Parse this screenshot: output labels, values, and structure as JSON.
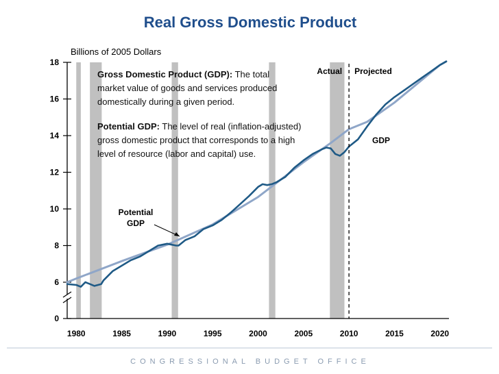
{
  "chart_data": {
    "type": "line",
    "title": "Real Gross Domestic Product",
    "ylabel": "Billions of 2005 Dollars",
    "xlabel": "",
    "xlim": [
      1979,
      2021
    ],
    "ylim": [
      0,
      18
    ],
    "y_ticks": [
      "0",
      "6",
      "8",
      "10",
      "12",
      "14",
      "16",
      "18"
    ],
    "x_ticks": [
      "1980",
      "1985",
      "1990",
      "1995",
      "2000",
      "2005",
      "2010",
      "2015",
      "2020"
    ],
    "recessions": [
      [
        1980.0,
        1980.5
      ],
      [
        1981.5,
        1982.8
      ],
      [
        1990.5,
        1991.2
      ],
      [
        2001.2,
        2001.9
      ],
      [
        2007.9,
        2009.5
      ]
    ],
    "projection_start": 2010,
    "divider_labels": {
      "actual": "Actual",
      "projected": "Projected"
    },
    "series": [
      {
        "name": "GDP",
        "label": "GDP",
        "color": "#1f5a86",
        "x": [
          1979,
          1980,
          1980.5,
          1981,
          1981.5,
          1982,
          1982.75,
          1983,
          1984,
          1985,
          1986,
          1987,
          1988,
          1989,
          1990,
          1990.5,
          1991,
          1991.25,
          1992,
          1993,
          1994,
          1995,
          1996,
          1997,
          1998,
          1999,
          2000,
          2000.5,
          2001,
          2001.5,
          2002,
          2003,
          2004,
          2005,
          2006,
          2007,
          2007.5,
          2008,
          2008.5,
          2009,
          2009.5,
          2010,
          2011,
          2012,
          2013,
          2014,
          2015,
          2016,
          2017,
          2018,
          2019,
          2020,
          2020.7
        ],
        "values": [
          5.9,
          5.85,
          5.75,
          6.0,
          5.9,
          5.8,
          5.9,
          6.1,
          6.6,
          6.9,
          7.2,
          7.4,
          7.7,
          8.0,
          8.1,
          8.05,
          8.0,
          8.0,
          8.3,
          8.5,
          8.9,
          9.1,
          9.4,
          9.8,
          10.25,
          10.7,
          11.2,
          11.35,
          11.3,
          11.35,
          11.45,
          11.75,
          12.25,
          12.65,
          13.0,
          13.25,
          13.35,
          13.3,
          13.0,
          12.9,
          13.1,
          13.4,
          13.8,
          14.5,
          15.15,
          15.7,
          16.1,
          16.45,
          16.8,
          17.15,
          17.5,
          17.85,
          18.05
        ]
      },
      {
        "name": "Potential GDP",
        "label": "Potential\nGDP",
        "color": "#8fa6c8",
        "x": [
          1979,
          1980,
          1985,
          1990,
          1995,
          2000,
          2005,
          2008,
          2010,
          2012,
          2015,
          2020,
          2020.7
        ],
        "values": [
          6.0,
          6.2,
          7.15,
          8.05,
          9.15,
          10.65,
          12.55,
          13.6,
          14.35,
          14.75,
          15.8,
          17.85,
          18.05
        ]
      }
    ]
  },
  "definitions": {
    "gdp_term": "Gross Domestic Product (GDP):",
    "gdp_text_1": " The total",
    "gdp_text_2": "market value of goods and services produced",
    "gdp_text_3": "domestically during a given period.",
    "pot_term": "Potential GDP:",
    "pot_text_1": " The level of real (inflation-adjusted)",
    "pot_text_2": "gross domestic product that corresponds to a high",
    "pot_text_3": "level of resource (labor and capital) use."
  },
  "labels": {
    "potential_line1": "Potential",
    "potential_line2": "GDP",
    "gdp": "GDP"
  },
  "footer": "CONGRESSIONAL BUDGET OFFICE",
  "colors": {
    "title": "#1f4e8c",
    "gdp": "#1f5a86",
    "potential": "#8fa6c8",
    "recession": "#c0c0c0",
    "footer": "#8a9bb0"
  }
}
